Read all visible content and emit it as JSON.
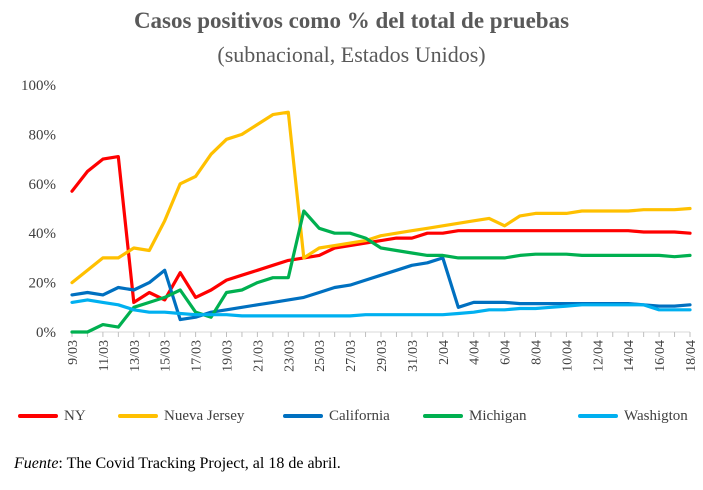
{
  "title": "Casos positivos como % del total de pruebas",
  "subtitle": "(subnacional, Estados Unidos)",
  "source_label": "Fuente",
  "source_text": ": The Covid Tracking Project, al 18 de abril.",
  "chart_data": {
    "type": "line",
    "title": "Casos positivos como % del total de pruebas",
    "subtitle": "(subnacional, Estados Unidos)",
    "xlabel": "",
    "ylabel": "",
    "ylim": [
      0,
      100
    ],
    "yticks": [
      "0%",
      "20%",
      "40%",
      "60%",
      "80%",
      "100%"
    ],
    "grid": false,
    "legend_position": "bottom",
    "categories": [
      "9/03",
      "10/03",
      "11/03",
      "12/03",
      "13/03",
      "14/03",
      "15/03",
      "16/03",
      "17/03",
      "18/03",
      "19/03",
      "20/03",
      "21/03",
      "22/03",
      "23/03",
      "24/03",
      "25/03",
      "26/03",
      "27/03",
      "28/03",
      "29/03",
      "30/03",
      "31/03",
      "1/04",
      "2/04",
      "3/04",
      "4/04",
      "5/04",
      "6/04",
      "7/04",
      "8/04",
      "9/04",
      "10/04",
      "11/04",
      "12/04",
      "13/04",
      "14/04",
      "15/04",
      "16/04",
      "17/04",
      "18/04"
    ],
    "xtick_labels": [
      "9/03",
      "11/03",
      "13/03",
      "15/03",
      "17/03",
      "19/03",
      "21/03",
      "23/03",
      "25/03",
      "27/03",
      "29/03",
      "31/03",
      "2/04",
      "4/04",
      "6/04",
      "8/04",
      "10/04",
      "12/04",
      "14/04",
      "16/04",
      "18/04"
    ],
    "series": [
      {
        "name": "NY",
        "color": "#ff0000",
        "values": [
          57,
          65,
          70,
          71,
          12,
          16,
          13,
          24,
          14,
          17,
          21,
          23,
          25,
          27,
          29,
          30,
          31,
          34,
          35,
          36,
          37,
          38,
          38,
          40,
          40,
          41,
          41,
          41,
          41,
          41,
          41,
          41,
          41,
          41,
          41,
          41,
          41,
          40.5,
          40.5,
          40.5,
          40
        ]
      },
      {
        "name": "Nueva Jersey",
        "color": "#ffc000",
        "values": [
          20,
          25,
          30,
          30,
          34,
          33,
          45,
          60,
          63,
          72,
          78,
          80,
          84,
          88,
          89,
          30,
          34,
          35,
          36,
          37,
          39,
          40,
          41,
          42,
          43,
          44,
          45,
          46,
          43,
          47,
          48,
          48,
          48,
          49,
          49,
          49,
          49,
          49.5,
          49.5,
          49.5,
          50
        ]
      },
      {
        "name": "California",
        "color": "#0070c0",
        "values": [
          15,
          16,
          15,
          18,
          17,
          20,
          25,
          5,
          6,
          8,
          9,
          10,
          11,
          12,
          13,
          14,
          16,
          18,
          19,
          21,
          23,
          25,
          27,
          28,
          30,
          10,
          12,
          12,
          12,
          11.5,
          11.5,
          11.5,
          11.5,
          11.5,
          11.5,
          11.5,
          11.5,
          11,
          10.5,
          10.5,
          11
        ]
      },
      {
        "name": "Michigan",
        "color": "#00b050",
        "values": [
          0,
          0,
          3,
          2,
          10,
          12,
          14,
          17,
          8,
          6,
          16,
          17,
          20,
          22,
          22,
          49,
          42,
          40,
          40,
          38,
          34,
          33,
          32,
          31,
          31,
          30,
          30,
          30,
          30,
          31,
          31.5,
          31.5,
          31.5,
          31,
          31,
          31,
          31,
          31,
          31,
          30.5,
          31
        ]
      },
      {
        "name": "Washigton",
        "color": "#00b0f0",
        "values": [
          12,
          13,
          12,
          11,
          9,
          8,
          8,
          7.5,
          7,
          7,
          7,
          6.5,
          6.5,
          6.5,
          6.5,
          6.5,
          6.5,
          6.5,
          6.5,
          7,
          7,
          7,
          7,
          7,
          7,
          7.5,
          8,
          9,
          9,
          9.5,
          9.5,
          10,
          10.5,
          11,
          11,
          11,
          11,
          11,
          9,
          9,
          9
        ]
      }
    ]
  }
}
